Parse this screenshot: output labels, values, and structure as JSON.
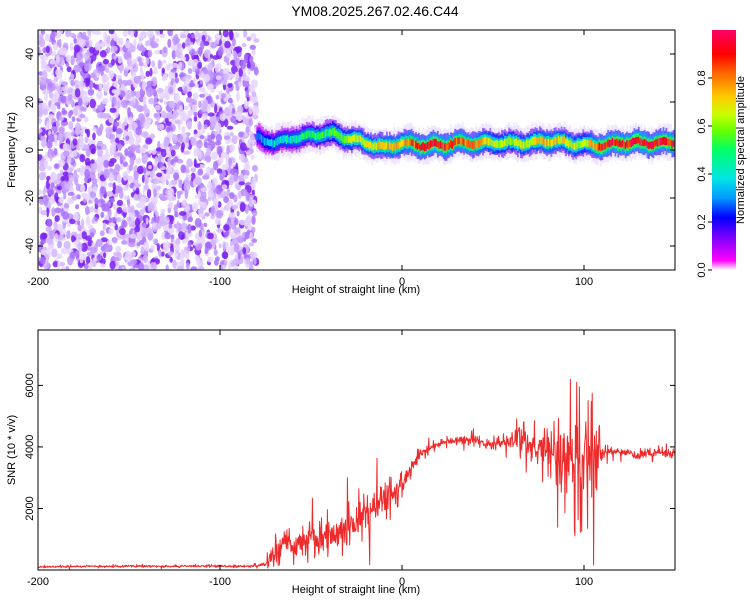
{
  "title": "YM08.2025.267.02.46.C44",
  "colors": {
    "trace": "#ee2a2a",
    "scatter": "#7a1ff0",
    "colorbar": [
      "#ff00ff",
      "#6600ff",
      "#0000ff",
      "#0099ff",
      "#00e5e5",
      "#00ff66",
      "#66ff00",
      "#ccff00",
      "#ffcc00",
      "#ff6600",
      "#ff0000",
      "#ff0066"
    ]
  },
  "chart_data": [
    {
      "type": "heatmap",
      "name": "spectrogram",
      "xlabel": "Height of straight line (km)",
      "ylabel": "Frequency (Hz)",
      "xlim": [
        -200,
        150
      ],
      "ylim": [
        -50,
        50
      ],
      "xticks": [
        -200,
        -100,
        0,
        100
      ],
      "xtick_labels": [
        "-200",
        "-100",
        "0",
        "100"
      ],
      "yticks": [
        -40,
        -20,
        0,
        20,
        40
      ],
      "ytick_labels": [
        "-40",
        "-20",
        "0",
        "20",
        "40"
      ],
      "noise_region": {
        "x_from": -200,
        "x_to": -80,
        "freq_from": -50,
        "freq_to": 50
      },
      "ridge": {
        "x": [
          -80,
          -70,
          -60,
          -50,
          -40,
          -30,
          -20,
          -10,
          0,
          10,
          20,
          30,
          40,
          50,
          60,
          70,
          80,
          90,
          100,
          110,
          120,
          130,
          140,
          150
        ],
        "freq_hz": [
          5,
          3,
          5,
          6,
          7,
          5,
          3,
          1,
          3,
          2,
          2,
          3,
          3,
          3,
          3,
          3,
          4,
          3,
          2,
          2,
          3,
          3,
          3,
          3
        ],
        "amplitude": [
          0.35,
          0.45,
          0.5,
          0.55,
          0.6,
          0.7,
          0.75,
          0.8,
          0.8,
          0.95,
          0.95,
          0.9,
          0.85,
          0.7,
          0.7,
          0.75,
          0.8,
          0.75,
          0.7,
          0.95,
          0.95,
          0.95,
          0.95,
          0.95
        ]
      },
      "colorbar": {
        "label": "Normalized spectral amplitude",
        "range": [
          0,
          1
        ],
        "ticks": [
          0.0,
          0.2,
          0.4,
          0.6,
          0.8
        ],
        "tick_labels": [
          "0.0",
          "0.2",
          "0.4",
          "0.6",
          "0.8"
        ]
      }
    },
    {
      "type": "line",
      "name": "snr",
      "xlabel": "Height of straight line (km)",
      "ylabel": "SNR (10 * v/v)",
      "xlim": [
        -200,
        150
      ],
      "ylim": [
        0,
        7800
      ],
      "xticks": [
        -200,
        -100,
        0,
        100
      ],
      "xtick_labels": [
        "-200",
        "-100",
        "0",
        "100"
      ],
      "yticks": [
        2000,
        4000,
        6000
      ],
      "ytick_labels": [
        "2000",
        "4000",
        "6000"
      ],
      "series": [
        {
          "name": "SNR",
          "x": [
            -200,
            -180,
            -160,
            -140,
            -120,
            -100,
            -90,
            -80,
            -75,
            -70,
            -65,
            -60,
            -55,
            -50,
            -45,
            -40,
            -35,
            -30,
            -25,
            -20,
            -15,
            -10,
            -5,
            0,
            5,
            10,
            15,
            20,
            25,
            30,
            35,
            40,
            45,
            50,
            55,
            60,
            65,
            70,
            75,
            80,
            85,
            90,
            95,
            100,
            105,
            110,
            115,
            120,
            125,
            130,
            135,
            140,
            145,
            150
          ],
          "y": [
            100,
            120,
            120,
            130,
            120,
            130,
            120,
            130,
            200,
            600,
            1000,
            700,
            900,
            1200,
            1000,
            1100,
            1300,
            1500,
            1500,
            1800,
            2000,
            2300,
            2500,
            2800,
            3300,
            3800,
            3900,
            4100,
            4200,
            4200,
            4200,
            4200,
            4100,
            4100,
            4100,
            4200,
            4300,
            4000,
            4000,
            4000,
            3800,
            3800,
            3600,
            3500,
            3500,
            3800,
            3900,
            3800,
            3800,
            3700,
            3800,
            3800,
            3800,
            3800
          ],
          "spread": [
            60,
            60,
            60,
            60,
            60,
            60,
            60,
            60,
            200,
            1000,
            700,
            600,
            800,
            900,
            1000,
            900,
            1000,
            1100,
            1100,
            1200,
            1000,
            900,
            800,
            700,
            500,
            300,
            300,
            250,
            250,
            250,
            250,
            250,
            250,
            250,
            300,
            400,
            1000,
            600,
            700,
            1000,
            1800,
            2800,
            3000,
            2800,
            3000,
            400,
            250,
            250,
            250,
            250,
            250,
            250,
            250,
            250
          ]
        }
      ]
    }
  ]
}
